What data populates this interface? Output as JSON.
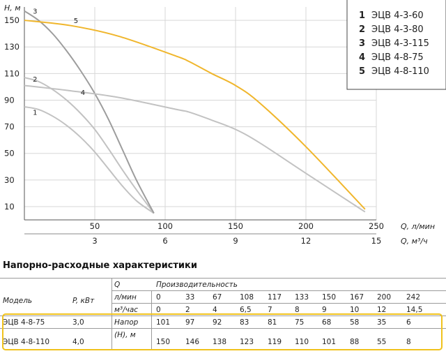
{
  "chart_data": {
    "type": "line",
    "ylabel": "H, м",
    "xlabel": "Q, л/мин",
    "x2label": "Q, м³/ч",
    "xlim": [
      0,
      250
    ],
    "ylim": [
      0,
      160
    ],
    "x_ticks": [
      "50",
      "100",
      "150",
      "200",
      "250"
    ],
    "x_tick_values": [
      50,
      100,
      150,
      200,
      250
    ],
    "x2_ticks": [
      "3",
      "6",
      "9",
      "12",
      "15"
    ],
    "y_ticks": [
      "10",
      "30",
      "50",
      "70",
      "90",
      "110",
      "130",
      "150"
    ],
    "y_tick_values": [
      10,
      30,
      50,
      70,
      90,
      110,
      130,
      150
    ],
    "grid": true,
    "legend_position": "top-right",
    "series": [
      {
        "name": "ЭЦВ 4-3-60",
        "number": "1",
        "color": "#c2c2c2",
        "x": [
          0,
          10,
          20,
          30,
          40,
          50,
          60,
          70,
          80,
          92
        ],
        "y": [
          85,
          83,
          78,
          71,
          62,
          51,
          38,
          25,
          14,
          5
        ]
      },
      {
        "name": "ЭЦВ 4-3-80",
        "number": "2",
        "color": "#c2c2c2",
        "x": [
          0,
          10,
          20,
          30,
          40,
          50,
          60,
          70,
          80,
          92
        ],
        "y": [
          107,
          104,
          98,
          90,
          80,
          68,
          53,
          37,
          22,
          5
        ]
      },
      {
        "name": "ЭЦВ 4-3-115",
        "number": "3",
        "color": "#9d9d9d",
        "x": [
          0,
          10,
          20,
          30,
          40,
          50,
          60,
          70,
          80,
          92
        ],
        "y": [
          157,
          150,
          140,
          127,
          112,
          95,
          75,
          52,
          29,
          5
        ]
      },
      {
        "name": "ЭЦВ 4-8-75",
        "number": "4",
        "color": "#c2c2c2",
        "x": [
          0,
          33,
          67,
          108,
          117,
          133,
          150,
          167,
          200,
          242
        ],
        "y": [
          101,
          97,
          92,
          83,
          81,
          75,
          68,
          58,
          35,
          6
        ]
      },
      {
        "name": "ЭЦВ 4-8-110",
        "number": "5",
        "color": "#f0b62c",
        "x": [
          0,
          33,
          67,
          108,
          117,
          133,
          150,
          167,
          200,
          242
        ],
        "y": [
          150,
          146,
          138,
          123,
          119,
          110,
          101,
          88,
          55,
          8
        ]
      }
    ]
  },
  "table": {
    "title": "Напорно-расходные характеристики",
    "col_model": "Модель",
    "col_power": "P, кВт",
    "col_q": "Q",
    "col_capacity": "Производительность",
    "unit_lmin": "л/мин",
    "unit_m3h": "м³/час",
    "head_label_line1": "Напор",
    "head_label_line2": "(H), м",
    "q_lmin": [
      "0",
      "33",
      "67",
      "108",
      "117",
      "133",
      "150",
      "167",
      "200",
      "242"
    ],
    "q_m3h": [
      "0",
      "2",
      "4",
      "6,5",
      "7",
      "8",
      "9",
      "10",
      "12",
      "14,5"
    ],
    "rows": [
      {
        "model": "ЭЦВ 4-8-75",
        "power": "3,0",
        "head": [
          "101",
          "97",
          "92",
          "83",
          "81",
          "75",
          "68",
          "58",
          "35",
          "6"
        ]
      },
      {
        "model": "ЭЦВ 4-8-110",
        "power": "4,0",
        "head": [
          "150",
          "146",
          "138",
          "123",
          "119",
          "110",
          "101",
          "88",
          "55",
          "8"
        ]
      }
    ]
  }
}
